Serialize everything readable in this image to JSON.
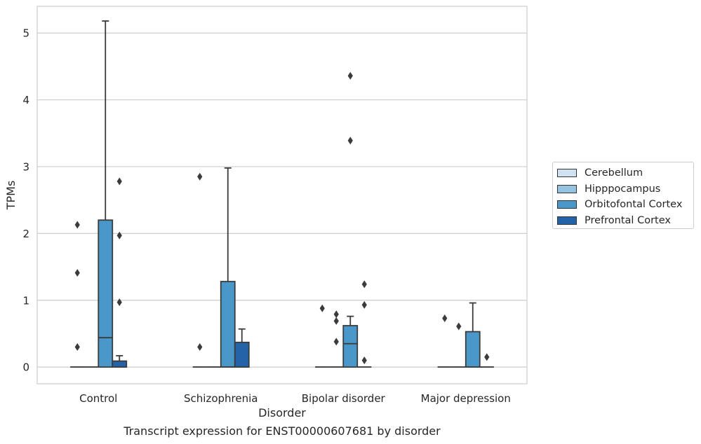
{
  "caption": "Transcript expression for ENST00000607681 by disorder",
  "chart_data": {
    "type": "box",
    "xlabel": "Disorder",
    "ylabel": "TPMs",
    "ylim": [
      -0.25,
      5.4
    ],
    "yticks": [
      0,
      1,
      2,
      3,
      4,
      5
    ],
    "grid": "horizontal",
    "legend_placement": "right",
    "categories": [
      "Control",
      "Schizophrenia",
      "Bipolar disorder",
      "Major depression"
    ],
    "series": [
      {
        "name": "Cerebellum",
        "color": "#d0e1f2",
        "boxes": [
          {
            "min": 0,
            "q1": 0,
            "median": 0,
            "q3": 0,
            "max": 0,
            "outliers": [
              0.3,
              1.41,
              2.13
            ]
          },
          {
            "min": 0,
            "q1": 0,
            "median": 0,
            "q3": 0,
            "max": 0,
            "outliers": [
              0.3,
              2.85
            ]
          },
          {
            "min": 0,
            "q1": 0,
            "median": 0,
            "q3": 0,
            "max": 0,
            "outliers": [
              0.88
            ]
          },
          {
            "min": 0,
            "q1": 0,
            "median": 0,
            "q3": 0,
            "max": 0,
            "outliers": [
              0.73
            ]
          }
        ]
      },
      {
        "name": "Hipppocampus",
        "color": "#94c4df",
        "boxes": [
          {
            "min": 0,
            "q1": 0,
            "median": 0,
            "q3": 0,
            "max": 0,
            "outliers": []
          },
          {
            "min": 0,
            "q1": 0,
            "median": 0,
            "q3": 0,
            "max": 0,
            "outliers": []
          },
          {
            "min": 0,
            "q1": 0,
            "median": 0,
            "q3": 0,
            "max": 0,
            "outliers": [
              0.38,
              0.69,
              0.79
            ]
          },
          {
            "min": 0,
            "q1": 0,
            "median": 0,
            "q3": 0,
            "max": 0,
            "outliers": [
              0.61
            ]
          }
        ]
      },
      {
        "name": "Orbitofontal Cortex",
        "color": "#4a98c9",
        "boxes": [
          {
            "min": 0,
            "q1": 0,
            "median": 0.44,
            "q3": 2.2,
            "max": 5.18,
            "outliers": []
          },
          {
            "min": 0,
            "q1": 0,
            "median": 0,
            "q3": 1.28,
            "max": 2.98,
            "outliers": []
          },
          {
            "min": 0,
            "q1": 0,
            "median": 0.35,
            "q3": 0.62,
            "max": 0.76,
            "outliers": [
              3.39,
              4.36
            ]
          },
          {
            "min": 0,
            "q1": 0,
            "median": 0,
            "q3": 0.53,
            "max": 0.96,
            "outliers": []
          }
        ]
      },
      {
        "name": "Prefrontal Cortex",
        "color": "#2563a8",
        "boxes": [
          {
            "min": 0,
            "q1": 0,
            "median": 0,
            "q3": 0.09,
            "max": 0.17,
            "outliers": [
              0.97,
              1.97,
              2.78
            ]
          },
          {
            "min": 0,
            "q1": 0,
            "median": 0,
            "q3": 0.37,
            "max": 0.57,
            "outliers": []
          },
          {
            "min": 0,
            "q1": 0,
            "median": 0,
            "q3": 0,
            "max": 0,
            "outliers": [
              0.1,
              0.93,
              1.24
            ]
          },
          {
            "min": 0,
            "q1": 0,
            "median": 0,
            "q3": 0,
            "max": 0,
            "outliers": [
              0.15
            ]
          }
        ]
      }
    ]
  }
}
